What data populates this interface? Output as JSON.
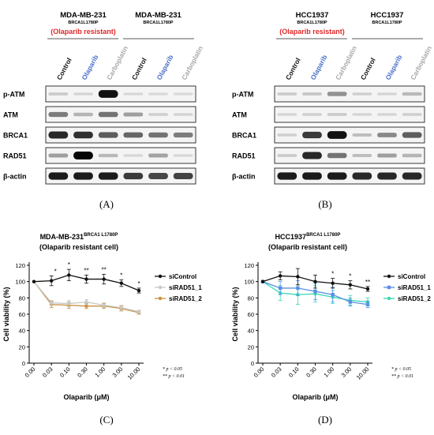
{
  "panels": {
    "A": {
      "panel_label": "(A)",
      "group1": {
        "line_name": "MDA-MB-231",
        "line_sub": "BRCA1L1780P",
        "note": "(Olaparib resistant)"
      },
      "group2": {
        "line_name": "MDA-MB-231",
        "line_sub": "BRCA1L1780P"
      },
      "lanes": [
        "Control",
        "Olaparib",
        "Carboplatin",
        "Control",
        "Olaparib",
        "Carboplatin"
      ],
      "lane_colors": [
        "#111111",
        "#4a6fc7",
        "#a8a8a8",
        "#111111",
        "#4a6fc7",
        "#a8a8a8"
      ],
      "blots": [
        {
          "label": "p-ATM",
          "intensities": [
            0.1,
            0.05,
            0.95,
            0.04,
            0.03,
            0.03
          ]
        },
        {
          "label": "ATM",
          "intensities": [
            0.45,
            0.2,
            0.5,
            0.3,
            0.08,
            0.06
          ]
        },
        {
          "label": "BRCA1",
          "intensities": [
            0.85,
            0.8,
            0.6,
            0.55,
            0.5,
            0.45
          ]
        },
        {
          "label": "RAD51",
          "intensities": [
            0.3,
            1.0,
            0.18,
            0.04,
            0.28,
            0.04
          ]
        },
        {
          "label": "β-actin",
          "intensities": [
            0.9,
            0.9,
            0.9,
            0.75,
            0.7,
            0.72
          ]
        }
      ]
    },
    "B": {
      "panel_label": "(B)",
      "group1": {
        "line_name": "HCC1937",
        "line_sub": "BRCA1L1780P",
        "note": "(Olaparib resistant)"
      },
      "group2": {
        "line_name": "HCC1937",
        "line_sub": "BRCA1L1780P"
      },
      "lanes": [
        "Control",
        "Olaparib",
        "Carboplatin",
        "Control",
        "Olaparib",
        "Carboplatin"
      ],
      "lane_colors": [
        "#111111",
        "#4a6fc7",
        "#a8a8a8",
        "#111111",
        "#4a6fc7",
        "#a8a8a8"
      ],
      "blots": [
        {
          "label": "p-ATM",
          "intensities": [
            0.1,
            0.12,
            0.35,
            0.08,
            0.05,
            0.18
          ]
        },
        {
          "label": "ATM",
          "intensities": [
            0.05,
            0.08,
            0.1,
            0.05,
            0.05,
            0.08
          ]
        },
        {
          "label": "BRCA1",
          "intensities": [
            0.08,
            0.75,
            0.95,
            0.15,
            0.4,
            0.6
          ]
        },
        {
          "label": "RAD51",
          "intensities": [
            0.1,
            0.85,
            0.5,
            0.15,
            0.3,
            0.2
          ]
        },
        {
          "label": "β-actin",
          "intensities": [
            0.9,
            0.9,
            0.9,
            0.85,
            0.85,
            0.85
          ]
        }
      ]
    },
    "C": {
      "panel_label": "(C)"
    },
    "D": {
      "panel_label": "(D)"
    }
  },
  "chart_data": [
    {
      "type": "line",
      "title": "MDA-MB-231",
      "title_super": "BRCA1 L1780P",
      "subtitle": "(Olaparib resistant cell)",
      "xlabel": "Olaparib (μM)",
      "ylabel": "Cell viability (%)",
      "x": [
        "0.00",
        "0.03",
        "0.10",
        "0.30",
        "1.00",
        "3.00",
        "10.00"
      ],
      "ylim": [
        0,
        120
      ],
      "yticks": [
        0,
        20,
        40,
        60,
        80,
        100,
        120
      ],
      "series": [
        {
          "name": "siControl",
          "color": "#111111",
          "marker": "circle",
          "values": [
            100,
            101,
            108,
            103,
            103,
            98,
            89
          ],
          "errors": [
            0,
            6,
            7,
            5,
            6,
            4,
            3
          ]
        },
        {
          "name": "siRAD51_1",
          "color": "#c8c8c8",
          "marker": "circle",
          "values": [
            100,
            74,
            73,
            75,
            71,
            68,
            63
          ],
          "errors": [
            0,
            3,
            4,
            3,
            3,
            3,
            2
          ]
        },
        {
          "name": "siRAD51_2",
          "color": "#c8903c",
          "marker": "circle",
          "values": [
            100,
            72,
            71,
            70,
            70,
            67,
            62
          ],
          "errors": [
            0,
            4,
            4,
            3,
            3,
            3,
            2
          ]
        }
      ],
      "significance": [
        "",
        "*",
        "*",
        "**",
        "**",
        "*",
        "*"
      ],
      "footnotes": [
        "* p < 0.05",
        "** p < 0.01"
      ],
      "legend": "right"
    },
    {
      "type": "line",
      "title": "HCC1937",
      "title_super": "BRCA1 L1780P",
      "subtitle": "(Olaparib resistant cell)",
      "xlabel": "Olaparib (μM)",
      "ylabel": "Cell viability (%)",
      "x": [
        "0.00",
        "0.03",
        "0.10",
        "0.30",
        "1.00",
        "3.00",
        "10.00"
      ],
      "ylim": [
        0,
        120
      ],
      "yticks": [
        0,
        20,
        40,
        60,
        80,
        100,
        120
      ],
      "series": [
        {
          "name": "siControl",
          "color": "#111111",
          "marker": "circle",
          "values": [
            100,
            107,
            106,
            100,
            98,
            96,
            91
          ],
          "errors": [
            0,
            5,
            10,
            8,
            6,
            5,
            3
          ]
        },
        {
          "name": "siRAD51_1",
          "color": "#5b8fe6",
          "marker": "square",
          "values": [
            100,
            92,
            92,
            88,
            84,
            75,
            72
          ],
          "errors": [
            0,
            8,
            9,
            10,
            9,
            5,
            4
          ]
        },
        {
          "name": "siRAD51_2",
          "color": "#38d9b5",
          "marker": "circle",
          "values": [
            100,
            86,
            84,
            85,
            81,
            77,
            75
          ],
          "errors": [
            0,
            9,
            12,
            10,
            8,
            6,
            5
          ]
        }
      ],
      "significance": [
        "",
        "",
        "",
        "",
        "*",
        "*",
        "**"
      ],
      "footnotes": [
        "* p < 0.05",
        "** p < 0.01"
      ],
      "legend": "right"
    }
  ]
}
